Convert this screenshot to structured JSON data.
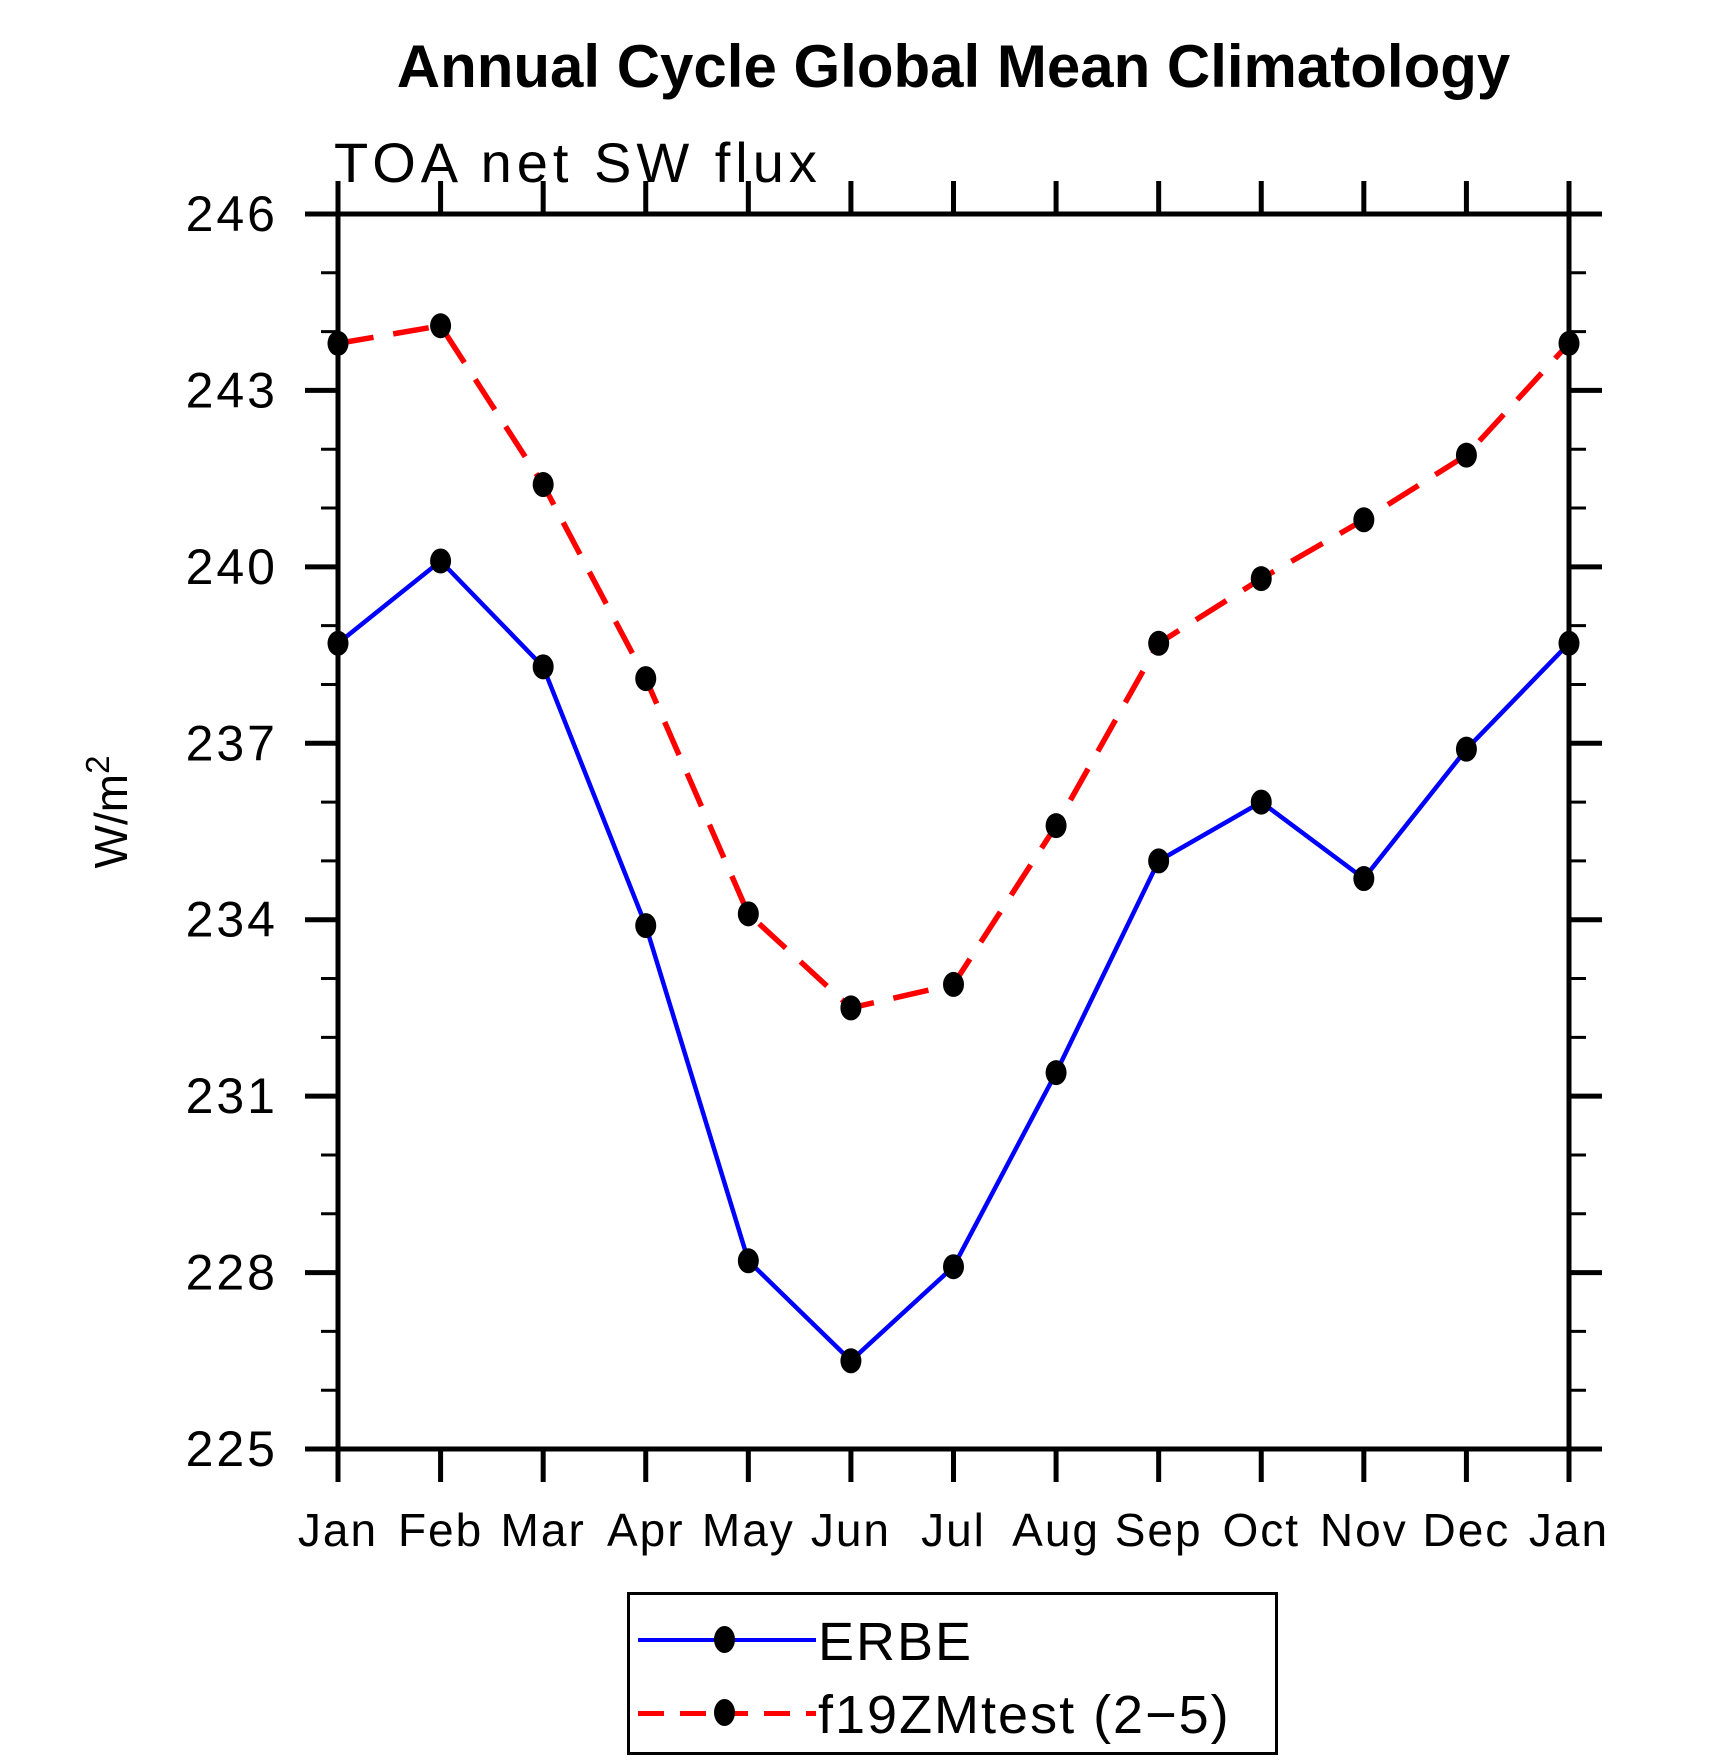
{
  "page_background": "#ffffff",
  "chart_data": {
    "type": "line",
    "title": "Annual Cycle Global Mean Climatology",
    "subtitle": "TOA net SW flux",
    "xlabel": "",
    "ylabel": "W/m²",
    "ylabel_base": "W/m",
    "ylabel_exp": "2",
    "categories": [
      "Jan",
      "Feb",
      "Mar",
      "Apr",
      "May",
      "Jun",
      "Jul",
      "Aug",
      "Sep",
      "Oct",
      "Nov",
      "Dec",
      "Jan"
    ],
    "ylim": [
      225,
      246
    ],
    "yticks_major": [
      225,
      228,
      231,
      234,
      237,
      240,
      243,
      246
    ],
    "ytick_minor_step": 1,
    "grid": false,
    "legend_position": "bottom-center-boxed",
    "series": [
      {
        "name": "ERBE",
        "color": "#0000ff",
        "style": "solid",
        "marker": "filled-dot",
        "marker_color": "#000000",
        "values": [
          238.7,
          240.1,
          238.3,
          233.9,
          228.2,
          226.5,
          228.1,
          231.4,
          235.0,
          236.0,
          234.7,
          236.9,
          238.7
        ]
      },
      {
        "name": "f19ZMtest (2−5)",
        "color": "#ff0000",
        "style": "dashed",
        "marker": "filled-dot",
        "marker_color": "#000000",
        "values": [
          243.8,
          244.1,
          241.4,
          238.1,
          234.1,
          232.5,
          232.9,
          235.6,
          238.7,
          239.8,
          240.8,
          241.9,
          243.8
        ]
      }
    ]
  },
  "colors": {
    "axis": "#000000",
    "text": "#000000",
    "background": "#ffffff",
    "erbe_line": "#0000ff",
    "model_line": "#ff0000",
    "marker": "#000000"
  }
}
